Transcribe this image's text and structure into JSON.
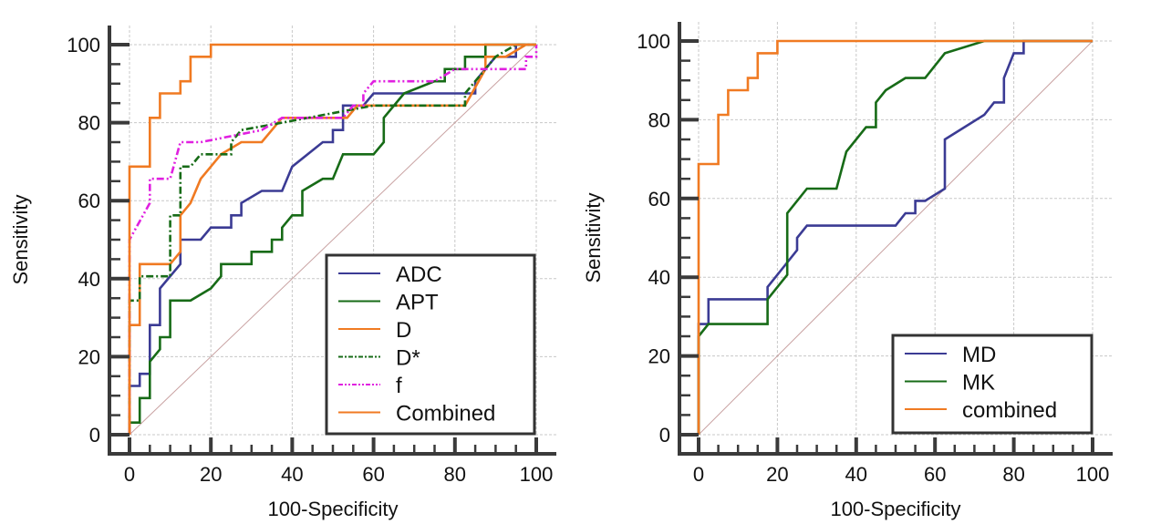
{
  "chart_data": [
    {
      "type": "line",
      "title": "",
      "xlabel": "100-Specificity",
      "ylabel": "Sensitivity",
      "xlim": [
        0,
        100
      ],
      "ylim": [
        0,
        100
      ],
      "xticks": [
        0,
        20,
        40,
        60,
        80,
        100
      ],
      "yticks": [
        0,
        20,
        40,
        60,
        80,
        100
      ],
      "grid": true,
      "legend_position": "bottom-right",
      "reference_line": "diagonal",
      "series": [
        {
          "name": "ADC",
          "color": "#3b3b94",
          "style": "solid",
          "points": [
            [
              0,
              0
            ],
            [
              0,
              12.5
            ],
            [
              2.5,
              12.5
            ],
            [
              2.5,
              15.6
            ],
            [
              5,
              15.6
            ],
            [
              5,
              28.1
            ],
            [
              7.5,
              28.1
            ],
            [
              7.5,
              37.5
            ],
            [
              12.5,
              43.75
            ],
            [
              12.5,
              50
            ],
            [
              17.5,
              50
            ],
            [
              20,
              53.1
            ],
            [
              25,
              53.1
            ],
            [
              25,
              56.25
            ],
            [
              27.5,
              56.25
            ],
            [
              27.5,
              59.4
            ],
            [
              32.5,
              62.5
            ],
            [
              37.5,
              62.5
            ],
            [
              40,
              68.75
            ],
            [
              47.5,
              75
            ],
            [
              50,
              75
            ],
            [
              50,
              78.1
            ],
            [
              52.5,
              78.1
            ],
            [
              52.5,
              84.4
            ],
            [
              57.5,
              84.4
            ],
            [
              60,
              87.5
            ],
            [
              85,
              87.5
            ],
            [
              85,
              90.6
            ],
            [
              90,
              96.9
            ],
            [
              95,
              96.9
            ],
            [
              95,
              100
            ],
            [
              100,
              100
            ]
          ]
        },
        {
          "name": "APT",
          "color": "#176b17",
          "style": "solid",
          "points": [
            [
              0,
              0
            ],
            [
              0,
              3.1
            ],
            [
              2.5,
              3.1
            ],
            [
              2.5,
              9.4
            ],
            [
              5,
              9.4
            ],
            [
              5,
              18.75
            ],
            [
              7.5,
              21.9
            ],
            [
              7.5,
              25
            ],
            [
              10,
              25
            ],
            [
              10,
              34.4
            ],
            [
              15,
              34.4
            ],
            [
              20,
              37.5
            ],
            [
              22.5,
              40.6
            ],
            [
              22.5,
              43.75
            ],
            [
              30,
              43.75
            ],
            [
              30,
              46.9
            ],
            [
              35,
              46.9
            ],
            [
              35,
              50
            ],
            [
              37.5,
              50
            ],
            [
              37.5,
              53.1
            ],
            [
              40,
              56.25
            ],
            [
              42.5,
              56.25
            ],
            [
              42.5,
              62.5
            ],
            [
              47.5,
              65.6
            ],
            [
              50,
              65.6
            ],
            [
              52.5,
              71.9
            ],
            [
              60,
              71.9
            ],
            [
              62.5,
              75
            ],
            [
              62.5,
              81.25
            ],
            [
              67.5,
              87.5
            ],
            [
              75,
              90.6
            ],
            [
              77.5,
              90.6
            ],
            [
              77.5,
              93.75
            ],
            [
              82.5,
              93.75
            ],
            [
              82.5,
              96.9
            ],
            [
              87.5,
              96.9
            ],
            [
              87.5,
              100
            ],
            [
              100,
              100
            ]
          ]
        },
        {
          "name": "D",
          "color": "#f07a22",
          "style": "solid",
          "points": [
            [
              0,
              0
            ],
            [
              0,
              28.1
            ],
            [
              2.5,
              28.1
            ],
            [
              2.5,
              43.75
            ],
            [
              10,
              43.75
            ],
            [
              12.5,
              46.9
            ],
            [
              12.5,
              56.25
            ],
            [
              15,
              59.4
            ],
            [
              17.5,
              65.6
            ],
            [
              20,
              68.75
            ],
            [
              22.5,
              71.9
            ],
            [
              27.5,
              75
            ],
            [
              32.5,
              75
            ],
            [
              37.5,
              81.25
            ],
            [
              53.5,
              81.25
            ],
            [
              56,
              84.4
            ],
            [
              82.5,
              84.4
            ],
            [
              87.5,
              93.75
            ],
            [
              87.5,
              96.9
            ],
            [
              92.5,
              96.9
            ],
            [
              97.5,
              100
            ],
            [
              100,
              100
            ]
          ]
        },
        {
          "name": "D*",
          "color": "#176b17",
          "style": "dashdot",
          "points": [
            [
              0,
              0
            ],
            [
              0,
              34.4
            ],
            [
              2.5,
              34.4
            ],
            [
              2.5,
              40.6
            ],
            [
              10,
              40.6
            ],
            [
              10,
              56.25
            ],
            [
              12.5,
              56.25
            ],
            [
              12.5,
              68.75
            ],
            [
              15,
              68.75
            ],
            [
              17.5,
              71.9
            ],
            [
              25,
              71.9
            ],
            [
              25,
              75
            ],
            [
              27.5,
              78.1
            ],
            [
              37.5,
              80
            ],
            [
              60,
              84.4
            ],
            [
              82.5,
              84.4
            ],
            [
              82.5,
              87.5
            ],
            [
              85,
              90.6
            ],
            [
              90,
              96.9
            ],
            [
              95,
              100
            ],
            [
              100,
              100
            ]
          ]
        },
        {
          "name": "f",
          "color": "#e020e0",
          "style": "dashdotdot",
          "points": [
            [
              0,
              0
            ],
            [
              0,
              50
            ],
            [
              5,
              59.4
            ],
            [
              5,
              65.6
            ],
            [
              10,
              65.6
            ],
            [
              12.5,
              75
            ],
            [
              17.5,
              75
            ],
            [
              32.5,
              78.1
            ],
            [
              37.5,
              81.25
            ],
            [
              52.5,
              81.25
            ],
            [
              55,
              84.4
            ],
            [
              57.5,
              84.4
            ],
            [
              57.5,
              87.5
            ],
            [
              60,
              90.6
            ],
            [
              75,
              90.6
            ],
            [
              80,
              93.75
            ],
            [
              97.5,
              93.75
            ],
            [
              97.5,
              96.9
            ],
            [
              100,
              96.9
            ],
            [
              100,
              100
            ]
          ]
        },
        {
          "name": "Combined",
          "color": "#f07a22",
          "style": "solid",
          "points": [
            [
              0,
              0
            ],
            [
              0,
              68.75
            ],
            [
              5,
              68.75
            ],
            [
              5,
              81.25
            ],
            [
              7.5,
              81.25
            ],
            [
              7.5,
              87.5
            ],
            [
              12.5,
              87.5
            ],
            [
              12.5,
              90.6
            ],
            [
              15,
              90.6
            ],
            [
              15,
              96.9
            ],
            [
              20,
              96.9
            ],
            [
              20,
              100
            ],
            [
              100,
              100
            ]
          ]
        }
      ]
    },
    {
      "type": "line",
      "title": "",
      "xlabel": "100-Specificity",
      "ylabel": "Sensitivity",
      "xlim": [
        0,
        100
      ],
      "ylim": [
        0,
        100
      ],
      "xticks": [
        0,
        20,
        40,
        60,
        80,
        100
      ],
      "yticks": [
        0,
        20,
        40,
        60,
        80,
        100
      ],
      "grid": true,
      "legend_position": "bottom-right",
      "reference_line": "diagonal",
      "series": [
        {
          "name": "MD",
          "color": "#3b3b94",
          "style": "solid",
          "points": [
            [
              0,
              0
            ],
            [
              0,
              28.1
            ],
            [
              2.5,
              28.1
            ],
            [
              2.5,
              34.4
            ],
            [
              17.5,
              34.4
            ],
            [
              17.5,
              37.5
            ],
            [
              22.5,
              43.75
            ],
            [
              25,
              46.9
            ],
            [
              25,
              50
            ],
            [
              27.5,
              53.1
            ],
            [
              50,
              53.1
            ],
            [
              52.5,
              56.25
            ],
            [
              55,
              56.25
            ],
            [
              55,
              59.4
            ],
            [
              57.5,
              59.4
            ],
            [
              62.5,
              62.5
            ],
            [
              62.5,
              75
            ],
            [
              72.5,
              81.25
            ],
            [
              75,
              84.4
            ],
            [
              77.5,
              84.4
            ],
            [
              77.5,
              90.6
            ],
            [
              80,
              96.9
            ],
            [
              82.5,
              96.9
            ],
            [
              82.5,
              100
            ],
            [
              100,
              100
            ]
          ]
        },
        {
          "name": "MK",
          "color": "#176b17",
          "style": "solid",
          "points": [
            [
              0,
              0
            ],
            [
              0,
              25
            ],
            [
              2.5,
              28.1
            ],
            [
              17.5,
              28.1
            ],
            [
              17.5,
              34.4
            ],
            [
              22.5,
              40.6
            ],
            [
              22.5,
              56.25
            ],
            [
              27.5,
              62.5
            ],
            [
              35,
              62.5
            ],
            [
              37.5,
              71.9
            ],
            [
              42.5,
              78.1
            ],
            [
              45,
              78.1
            ],
            [
              45,
              84.4
            ],
            [
              47.5,
              87.5
            ],
            [
              52.5,
              90.6
            ],
            [
              57.5,
              90.6
            ],
            [
              62.5,
              96.9
            ],
            [
              72.5,
              100
            ],
            [
              100,
              100
            ]
          ]
        },
        {
          "name": "combined",
          "color": "#f07a22",
          "style": "solid",
          "points": [
            [
              0,
              0
            ],
            [
              0,
              68.75
            ],
            [
              5,
              68.75
            ],
            [
              5,
              81.25
            ],
            [
              7.5,
              81.25
            ],
            [
              7.5,
              87.5
            ],
            [
              12.5,
              87.5
            ],
            [
              12.5,
              90.6
            ],
            [
              15,
              90.6
            ],
            [
              15,
              96.9
            ],
            [
              20,
              96.9
            ],
            [
              20,
              100
            ],
            [
              100,
              100
            ]
          ]
        }
      ]
    }
  ]
}
